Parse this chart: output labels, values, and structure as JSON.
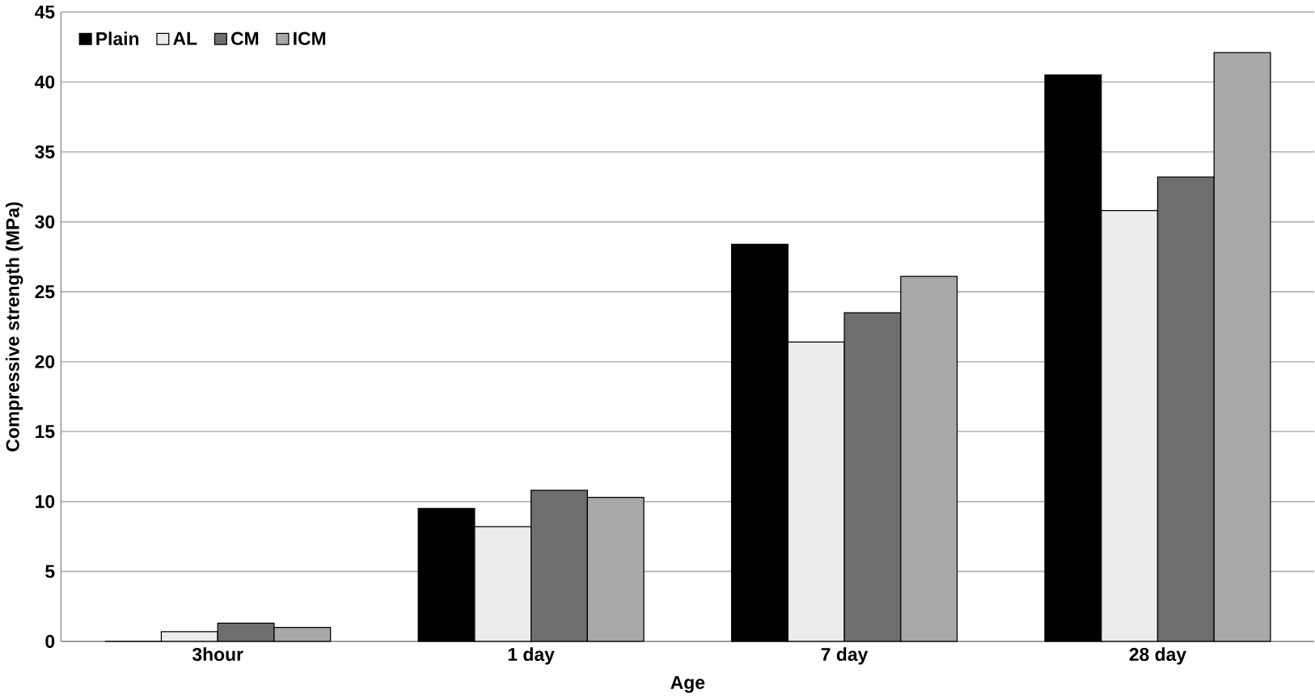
{
  "chart_data": {
    "type": "bar",
    "xlabel": "Age",
    "ylabel": "Compressive strength (MPa)",
    "categories": [
      "3hour",
      "1 day",
      "7 day",
      "28 day"
    ],
    "series": [
      {
        "name": "Plain",
        "color": "#000000",
        "values": [
          0,
          9.5,
          28.4,
          40.5
        ]
      },
      {
        "name": "AL",
        "color": "#ececec",
        "values": [
          0.7,
          8.2,
          21.4,
          30.8
        ]
      },
      {
        "name": "CM",
        "color": "#6e6e6e",
        "values": [
          1.3,
          10.8,
          23.5,
          33.2
        ]
      },
      {
        "name": "ICM",
        "color": "#a8a8a8",
        "values": [
          1.0,
          10.3,
          26.1,
          42.1
        ]
      }
    ],
    "ylim": [
      0,
      45
    ],
    "yticks": [
      0,
      5,
      10,
      15,
      20,
      25,
      30,
      35,
      40,
      45
    ],
    "grid": "y",
    "legend": "top left"
  }
}
